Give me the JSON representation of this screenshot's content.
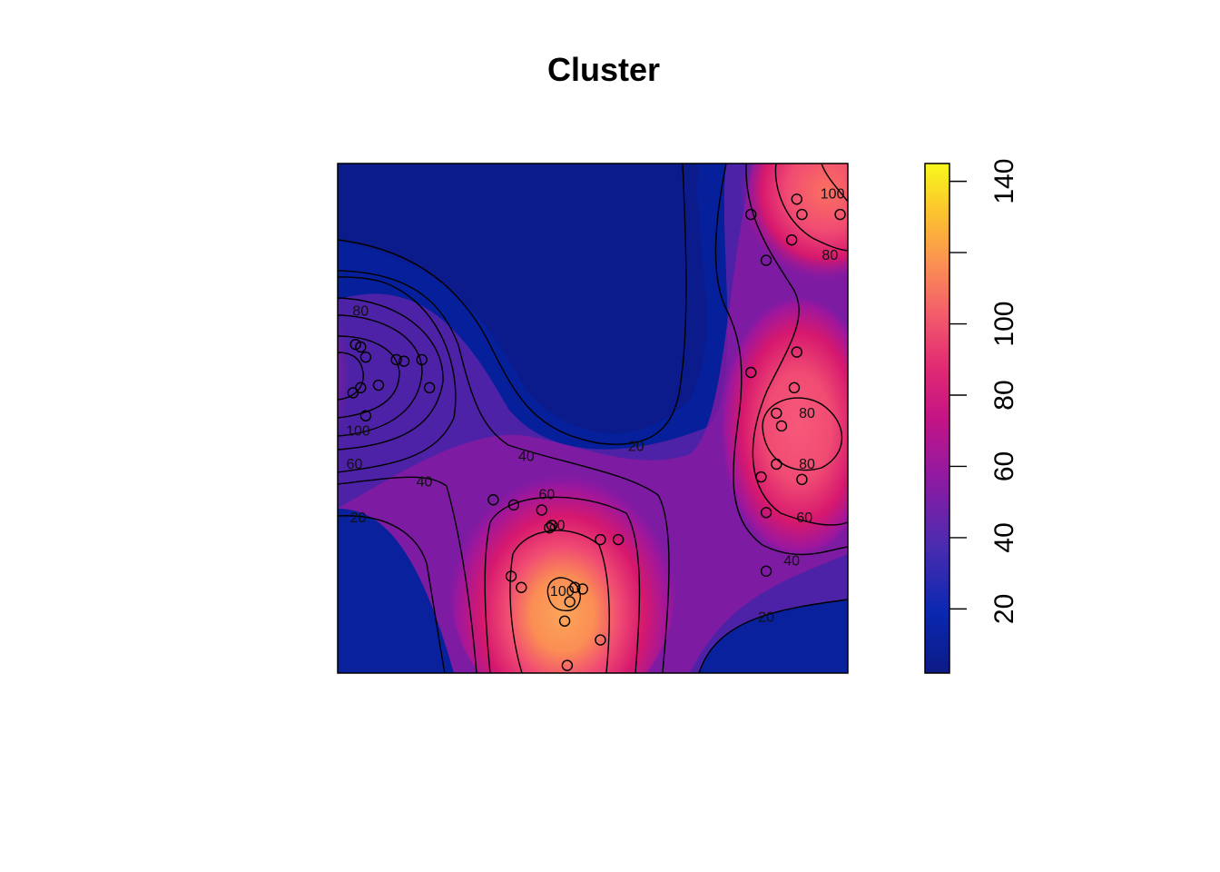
{
  "chart_data": {
    "type": "heatmap",
    "title": "Cluster",
    "xlabel": "",
    "ylabel": "",
    "xlim": [
      0,
      1
    ],
    "ylim": [
      0,
      1
    ],
    "colorbar": {
      "range": [
        2,
        145
      ],
      "ticks": [
        20,
        40,
        60,
        80,
        100,
        140
      ],
      "palette": [
        "#0d1a86",
        "#0a28b0",
        "#2637b8",
        "#6a1fa4",
        "#9c179e",
        "#d6186e",
        "#f04b73",
        "#fb8e54",
        "#fcc12f",
        "#f7f81c"
      ]
    },
    "contour_levels": [
      20,
      40,
      60,
      80,
      100,
      120
    ],
    "contour_labels": [
      {
        "text": "80",
        "x": 0.045,
        "y": 0.71
      },
      {
        "text": "100",
        "x": 0.04,
        "y": 0.475
      },
      {
        "text": "60",
        "x": 0.033,
        "y": 0.41
      },
      {
        "text": "40",
        "x": 0.17,
        "y": 0.375
      },
      {
        "text": "20",
        "x": 0.04,
        "y": 0.305
      },
      {
        "text": "40",
        "x": 0.37,
        "y": 0.425
      },
      {
        "text": "20",
        "x": 0.585,
        "y": 0.445
      },
      {
        "text": "60",
        "x": 0.41,
        "y": 0.35
      },
      {
        "text": "80",
        "x": 0.43,
        "y": 0.29
      },
      {
        "text": "100",
        "x": 0.44,
        "y": 0.16
      },
      {
        "text": "80",
        "x": 0.92,
        "y": 0.51
      },
      {
        "text": "100",
        "x": 0.97,
        "y": 0.94
      },
      {
        "text": "80",
        "x": 0.965,
        "y": 0.82
      },
      {
        "text": "80",
        "x": 0.92,
        "y": 0.41
      },
      {
        "text": "60",
        "x": 0.915,
        "y": 0.305
      },
      {
        "text": "40",
        "x": 0.89,
        "y": 0.22
      },
      {
        "text": "20",
        "x": 0.84,
        "y": 0.11
      }
    ],
    "points": [
      [
        0.035,
        0.645
      ],
      [
        0.045,
        0.64
      ],
      [
        0.055,
        0.62
      ],
      [
        0.03,
        0.55
      ],
      [
        0.045,
        0.56
      ],
      [
        0.08,
        0.565
      ],
      [
        0.055,
        0.505
      ],
      [
        0.115,
        0.615
      ],
      [
        0.13,
        0.612
      ],
      [
        0.165,
        0.615
      ],
      [
        0.18,
        0.56
      ],
      [
        0.305,
        0.34
      ],
      [
        0.345,
        0.33
      ],
      [
        0.4,
        0.32
      ],
      [
        0.42,
        0.29
      ],
      [
        0.415,
        0.285
      ],
      [
        0.515,
        0.262
      ],
      [
        0.55,
        0.262
      ],
      [
        0.34,
        0.19
      ],
      [
        0.36,
        0.168
      ],
      [
        0.465,
        0.168
      ],
      [
        0.48,
        0.165
      ],
      [
        0.455,
        0.14
      ],
      [
        0.445,
        0.102
      ],
      [
        0.515,
        0.065
      ],
      [
        0.45,
        0.015
      ],
      [
        0.9,
        0.93
      ],
      [
        0.91,
        0.9
      ],
      [
        0.985,
        0.9
      ],
      [
        0.81,
        0.9
      ],
      [
        0.89,
        0.85
      ],
      [
        0.84,
        0.81
      ],
      [
        0.9,
        0.63
      ],
      [
        0.81,
        0.59
      ],
      [
        0.895,
        0.56
      ],
      [
        0.86,
        0.51
      ],
      [
        0.87,
        0.485
      ],
      [
        0.86,
        0.41
      ],
      [
        0.83,
        0.385
      ],
      [
        0.91,
        0.38
      ],
      [
        0.84,
        0.315
      ],
      [
        0.84,
        0.2
      ]
    ]
  }
}
